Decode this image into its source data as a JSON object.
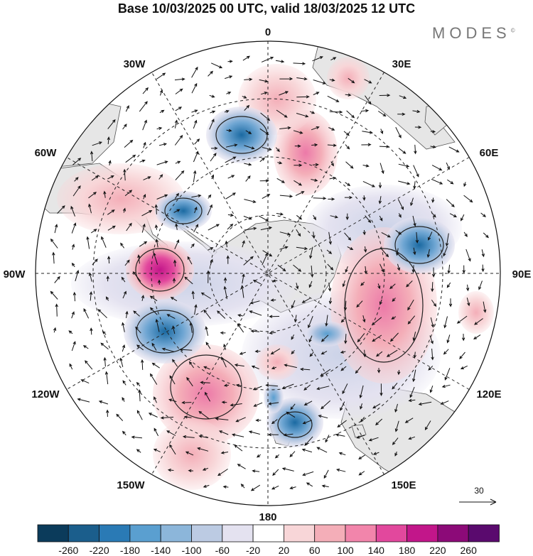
{
  "title": "Base 10/03/2025 00 UTC, valid 18/03/2025 12 UTC",
  "logo": {
    "text": "MODES",
    "mark": "©"
  },
  "longitude_labels": {
    "lon0": "0",
    "lon30e": "30E",
    "lon60e": "60E",
    "lon90e": "90E",
    "lon120e": "120E",
    "lon150e": "150E",
    "lon180": "180",
    "lon150w": "150W",
    "lon120w": "120W",
    "lon90w": "90W",
    "lon60w": "60W",
    "lon30w": "30W"
  },
  "reference_vector": {
    "label": "30"
  },
  "colorbar": {
    "colors": [
      "#0b3b5b",
      "#1b5e8c",
      "#2a7ab5",
      "#5a9fd0",
      "#8cb6da",
      "#bccbe3",
      "#e4e2f0",
      "#ffffff",
      "#f8d6d8",
      "#f4aeb8",
      "#f285ab",
      "#e2489d",
      "#c2168a",
      "#8c0a78",
      "#5a0a6e"
    ],
    "labels": [
      "-260",
      "-220",
      "-180",
      "-140",
      "-100",
      "-60",
      "-20",
      "20",
      "60",
      "100",
      "140",
      "180",
      "220",
      "260"
    ]
  },
  "colors": {
    "land": "#e6e6e6",
    "grid": "#222222",
    "coast": "#555555"
  }
}
